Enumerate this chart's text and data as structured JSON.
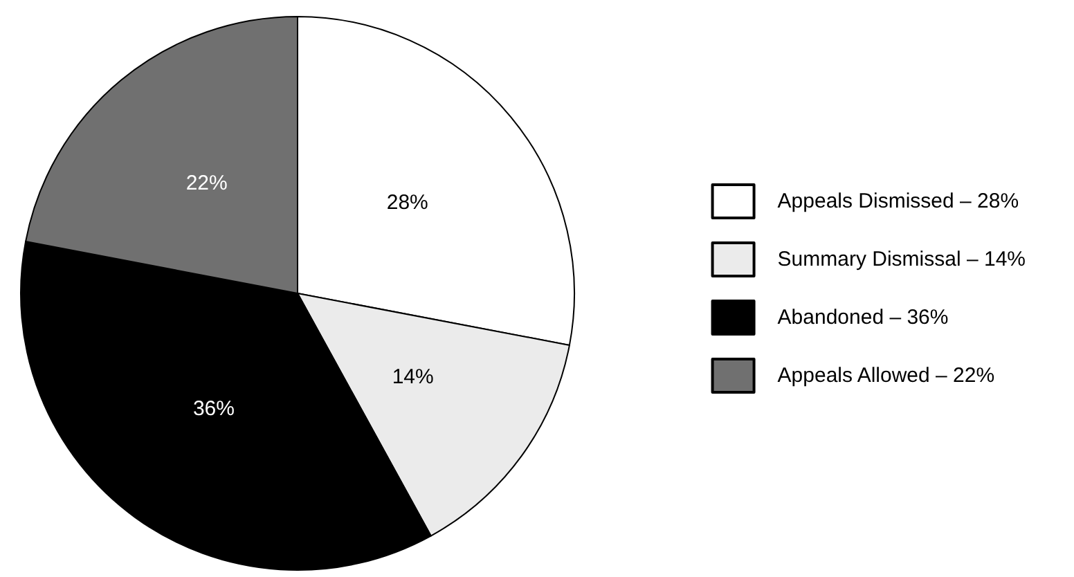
{
  "chart_data": {
    "type": "pie",
    "categories": [
      "Appeals Dismissed – 28%",
      "Summary Dismissal – 14%",
      "Abandoned – 36%",
      "Appeals Allowed – 22%"
    ],
    "values": [
      28,
      14,
      36,
      22
    ],
    "colors": [
      "#ffffff",
      "#ebebeb",
      "#000000",
      "#707070"
    ],
    "value_labels": [
      "28%",
      "14%",
      "36%",
      "22%"
    ],
    "legend": "right"
  }
}
